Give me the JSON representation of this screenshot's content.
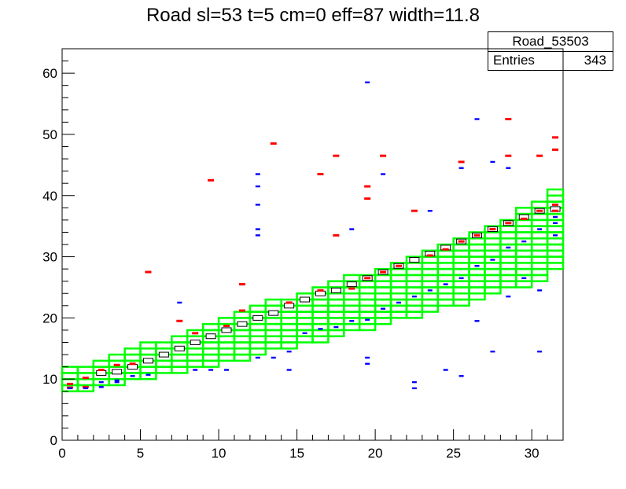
{
  "chart_data": {
    "type": "heatmap",
    "title": "Road sl=53 t=5 cm=0 eff=87 width=11.8",
    "xlabel": "",
    "ylabel": "",
    "xlim": [
      0,
      32
    ],
    "ylim": [
      0,
      64
    ],
    "x_ticks": [
      "0",
      "5",
      "10",
      "15",
      "20",
      "25",
      "30"
    ],
    "y_ticks": [
      "0",
      "10",
      "20",
      "30",
      "40",
      "50",
      "60"
    ],
    "stats_box": {
      "name": "Road_53503",
      "entries_label": "Entries",
      "entries_value": "343"
    },
    "road_windows": {
      "description_values": "per x-bin window [y_low, y_high] of the green road",
      "x_bins": [
        0,
        1,
        2,
        3,
        4,
        5,
        6,
        7,
        8,
        9,
        10,
        11,
        12,
        13,
        14,
        15,
        16,
        17,
        18,
        19,
        20,
        21,
        22,
        23,
        24,
        25,
        26,
        27,
        28,
        29,
        30,
        31
      ],
      "y_low": [
        8,
        8,
        9,
        9,
        10,
        10,
        11,
        11,
        12,
        12,
        13,
        13,
        14,
        15,
        15,
        16,
        16,
        17,
        18,
        18,
        19,
        20,
        20,
        21,
        22,
        22,
        23,
        24,
        25,
        25,
        26,
        28
      ],
      "y_high": [
        12,
        12,
        13,
        14,
        15,
        16,
        16,
        17,
        18,
        19,
        20,
        21,
        22,
        23,
        23,
        24,
        25,
        26,
        27,
        27,
        28,
        29,
        30,
        31,
        32,
        33,
        34,
        35,
        36,
        38,
        39,
        41
      ]
    },
    "hits_red": [
      [
        0.5,
        9.2
      ],
      [
        0.5,
        8.6
      ],
      [
        1.5,
        10.2
      ],
      [
        1.5,
        8.7
      ],
      [
        2.5,
        11.5
      ],
      [
        3.5,
        12.3
      ],
      [
        4.5,
        12.5
      ],
      [
        5.5,
        27.5
      ],
      [
        7.5,
        19.5
      ],
      [
        8.5,
        17.5
      ],
      [
        9.5,
        42.5
      ],
      [
        10.5,
        18.7
      ],
      [
        11.5,
        25.5
      ],
      [
        11.5,
        21.2
      ],
      [
        13.5,
        48.5
      ],
      [
        14.5,
        22.5
      ],
      [
        16.5,
        43.5
      ],
      [
        16.5,
        24.5
      ],
      [
        17.5,
        46.5
      ],
      [
        17.5,
        33.5
      ],
      [
        18.5,
        24.8
      ],
      [
        19.5,
        41.5
      ],
      [
        19.5,
        39.5
      ],
      [
        19.5,
        26.5
      ],
      [
        20.5,
        46.5
      ],
      [
        20.5,
        27.5
      ],
      [
        21.5,
        28.5
      ],
      [
        22.5,
        37.5
      ],
      [
        23.5,
        30.2
      ],
      [
        24.5,
        31.2
      ],
      [
        25.5,
        45.5
      ],
      [
        25.5,
        32.5
      ],
      [
        26.5,
        33.5
      ],
      [
        27.5,
        34.5
      ],
      [
        28.5,
        52.5
      ],
      [
        28.5,
        46.5
      ],
      [
        28.5,
        35.5
      ],
      [
        29.5,
        36.2
      ],
      [
        30.5,
        46.5
      ],
      [
        30.5,
        37.5
      ],
      [
        31.5,
        49.5
      ],
      [
        31.5,
        47.5
      ],
      [
        31.5,
        38.5
      ],
      [
        31.5,
        37.5
      ]
    ],
    "hits_blue": [
      [
        0.5,
        8.5
      ],
      [
        1.5,
        8.5
      ],
      [
        2.5,
        8.7
      ],
      [
        2.5,
        9.5
      ],
      [
        3.5,
        9.5
      ],
      [
        3.5,
        9.8
      ],
      [
        4.5,
        10.5
      ],
      [
        5.5,
        10.7
      ],
      [
        7.5,
        22.5
      ],
      [
        8.5,
        11.5
      ],
      [
        9.5,
        11.5
      ],
      [
        10.5,
        11.5
      ],
      [
        12.5,
        43.5
      ],
      [
        12.5,
        41.5
      ],
      [
        12.5,
        38.5
      ],
      [
        12.5,
        34.5
      ],
      [
        12.5,
        33.5
      ],
      [
        12.5,
        13.5
      ],
      [
        13.5,
        13.5
      ],
      [
        14.5,
        11.5
      ],
      [
        14.5,
        14.5
      ],
      [
        15.5,
        17.5
      ],
      [
        16.5,
        18.2
      ],
      [
        17.5,
        18.5
      ],
      [
        18.5,
        34.5
      ],
      [
        18.5,
        19.5
      ],
      [
        19.5,
        58.5
      ],
      [
        19.5,
        13.5
      ],
      [
        19.5,
        12.5
      ],
      [
        19.5,
        19.7
      ],
      [
        20.5,
        43.5
      ],
      [
        20.5,
        21.5
      ],
      [
        21.5,
        22.5
      ],
      [
        22.5,
        9.5
      ],
      [
        22.5,
        8.5
      ],
      [
        22.5,
        23.5
      ],
      [
        23.5,
        37.5
      ],
      [
        23.5,
        24.5
      ],
      [
        24.5,
        11.5
      ],
      [
        24.5,
        25.5
      ],
      [
        25.5,
        44.5
      ],
      [
        25.5,
        10.5
      ],
      [
        25.5,
        26.5
      ],
      [
        26.5,
        52.5
      ],
      [
        26.5,
        28.5
      ],
      [
        26.5,
        19.5
      ],
      [
        27.5,
        45.5
      ],
      [
        27.5,
        14.5
      ],
      [
        27.5,
        29.5
      ],
      [
        28.5,
        44.5
      ],
      [
        28.5,
        23.5
      ],
      [
        28.5,
        31.5
      ],
      [
        29.5,
        26.5
      ],
      [
        29.5,
        32.5
      ],
      [
        30.5,
        24.5
      ],
      [
        30.5,
        14.5
      ],
      [
        30.5,
        34.5
      ],
      [
        31.5,
        36.5
      ],
      [
        31.5,
        35.5
      ],
      [
        31.5,
        33.5
      ]
    ],
    "hits_box": [
      [
        2.5,
        11
      ],
      [
        3.5,
        11.2
      ],
      [
        4.5,
        12
      ],
      [
        5.5,
        13
      ],
      [
        6.5,
        14
      ],
      [
        7.5,
        15
      ],
      [
        8.5,
        16
      ],
      [
        9.5,
        17
      ],
      [
        10.5,
        18
      ],
      [
        11.5,
        19
      ],
      [
        12.5,
        20
      ],
      [
        13.5,
        20.8
      ],
      [
        14.5,
        22
      ],
      [
        15.5,
        23
      ],
      [
        16.5,
        24
      ],
      [
        17.5,
        24.5
      ],
      [
        18.5,
        25.5
      ],
      [
        19.5,
        26.5
      ],
      [
        20.5,
        27.5
      ],
      [
        21.5,
        28.5
      ],
      [
        22.5,
        29.5
      ],
      [
        23.5,
        30.5
      ],
      [
        24.5,
        31.5
      ],
      [
        25.5,
        32.5
      ],
      [
        26.5,
        33.5
      ],
      [
        27.5,
        34.5
      ],
      [
        28.5,
        35.5
      ],
      [
        29.5,
        36.5
      ],
      [
        30.5,
        37.5
      ],
      [
        31.5,
        37.8
      ]
    ],
    "colors": {
      "road": "#00ff00",
      "hit_red": "#ff0000",
      "hit_blue": "#0000ff",
      "axis": "#000000"
    }
  }
}
